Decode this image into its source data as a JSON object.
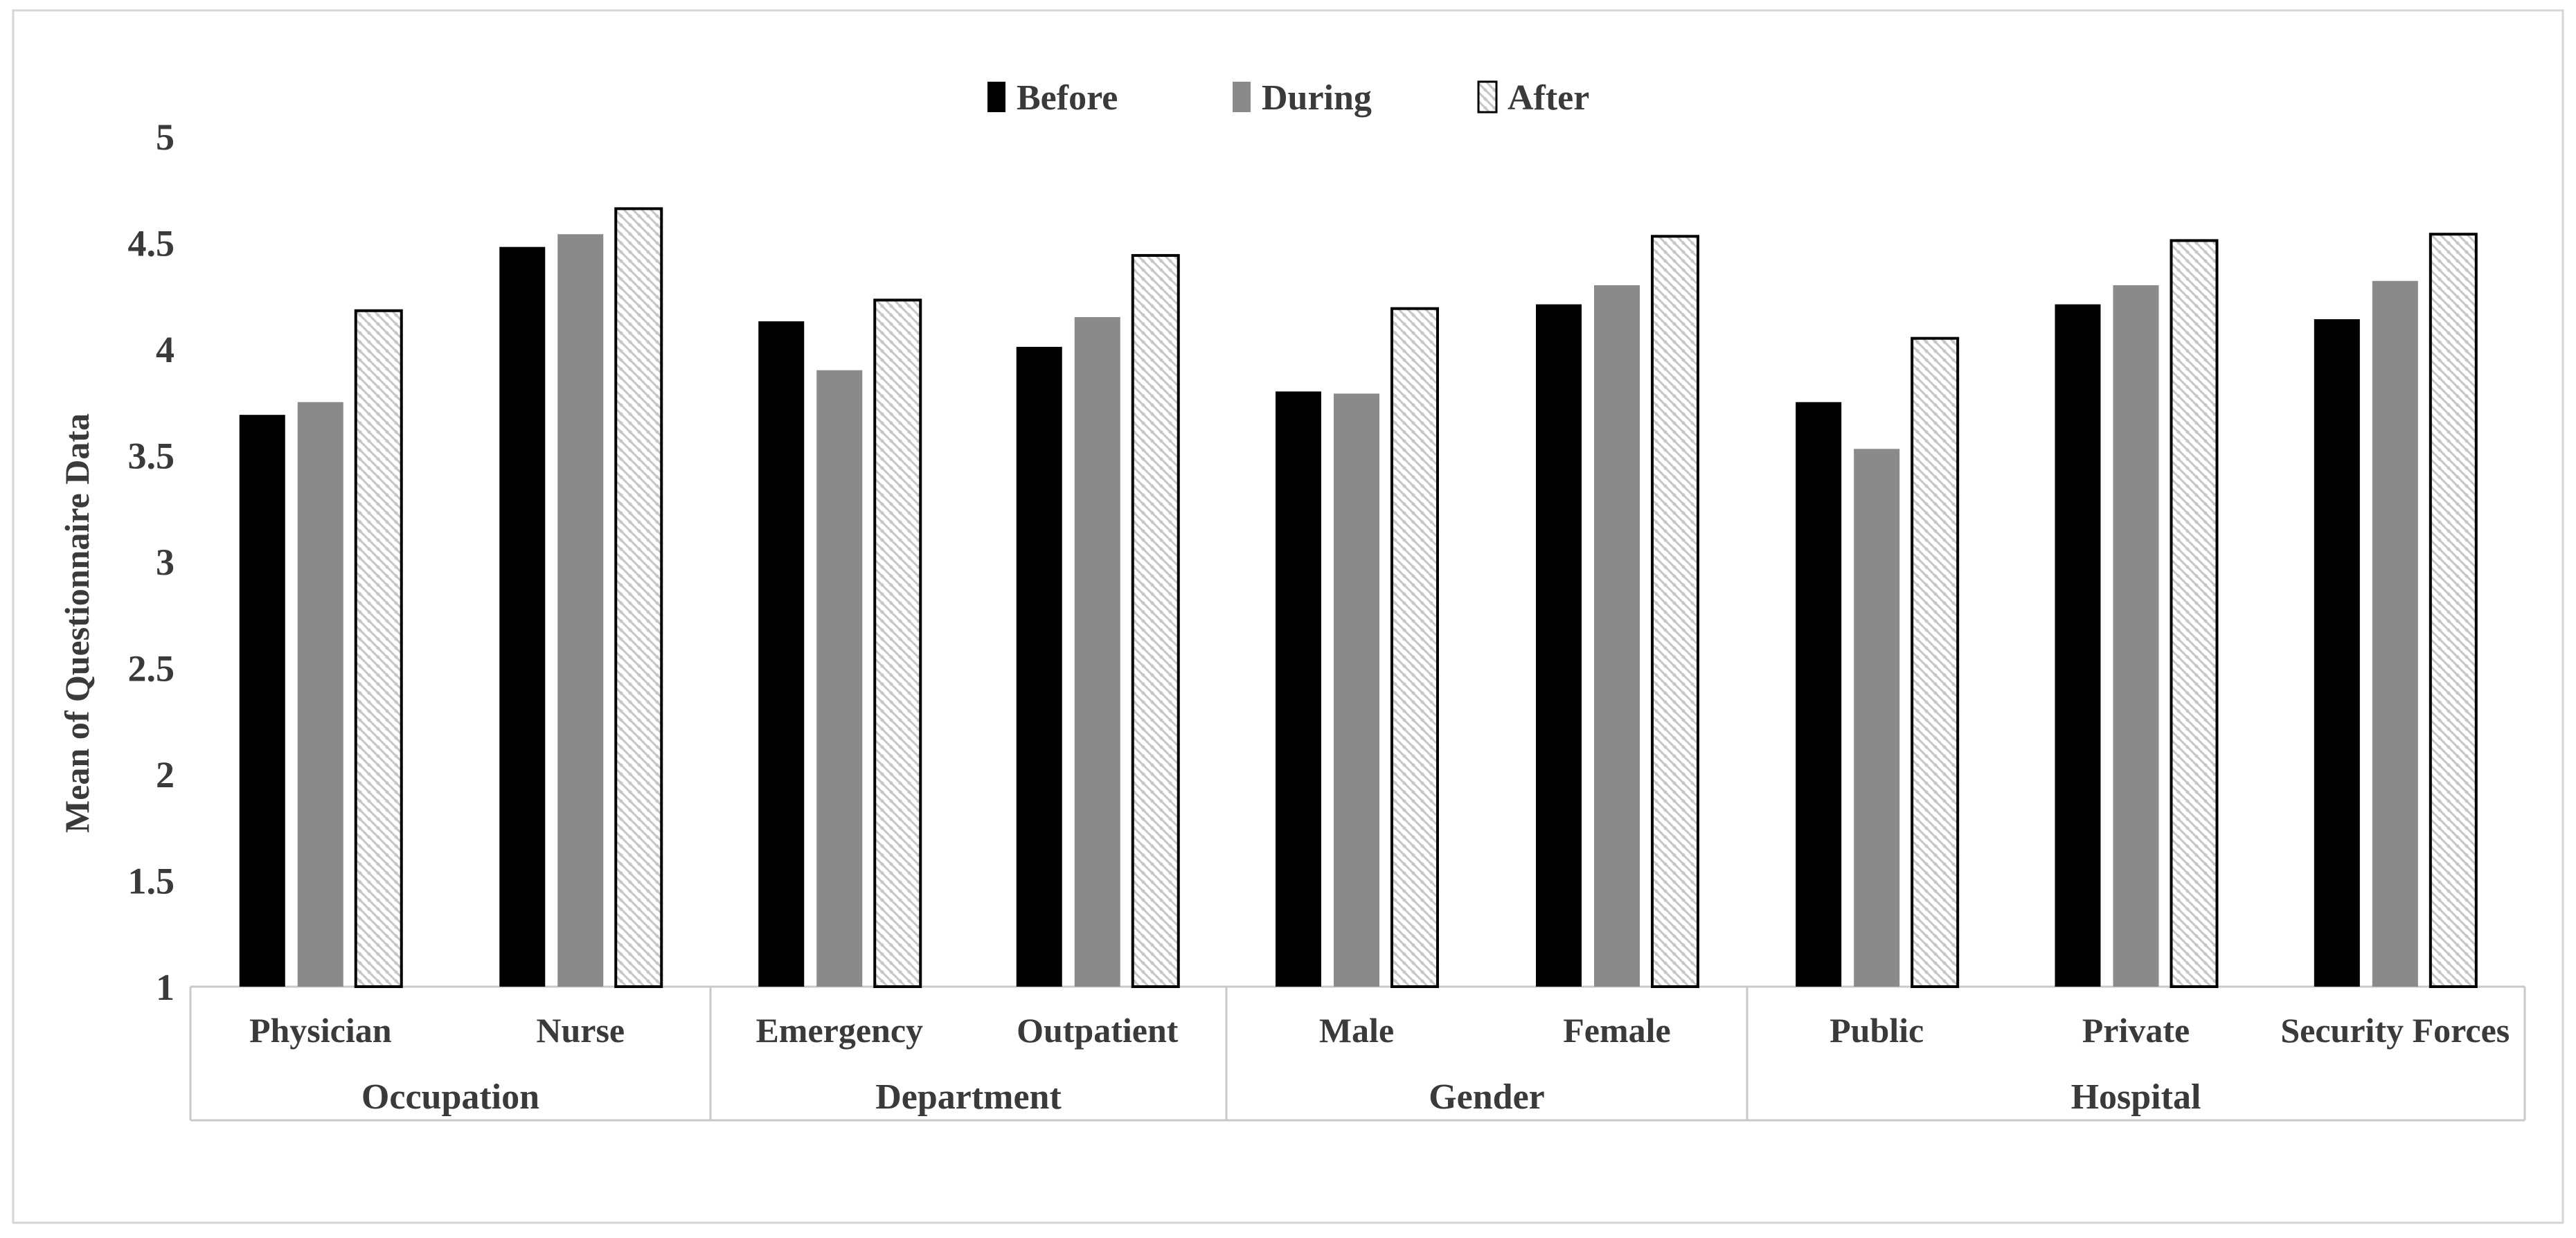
{
  "chart_data": {
    "type": "bar",
    "title": "",
    "ylabel": "Mean of Questionnaire Data",
    "ylim": [
      1,
      5
    ],
    "ytick_step": 0.5,
    "yticks": [
      {
        "value": 5,
        "label": "5"
      },
      {
        "value": 4.5,
        "label": "4.5"
      },
      {
        "value": 4,
        "label": "4"
      },
      {
        "value": 3.5,
        "label": "3.5"
      },
      {
        "value": 3,
        "label": "3"
      },
      {
        "value": 2.5,
        "label": "2.5"
      },
      {
        "value": 2,
        "label": "2"
      },
      {
        "value": 1.5,
        "label": "1.5"
      },
      {
        "value": 1,
        "label": "1"
      }
    ],
    "groups": [
      {
        "label": "Occupation",
        "categories": [
          "Physician",
          "Nurse"
        ]
      },
      {
        "label": "Department",
        "categories": [
          "Emergency",
          "Outpatient"
        ]
      },
      {
        "label": "Gender",
        "categories": [
          "Male",
          "Female"
        ]
      },
      {
        "label": "Hospital",
        "categories": [
          "Public",
          "Private",
          "Security Forces"
        ]
      }
    ],
    "series": [
      {
        "name": "Before",
        "style": "solid-black",
        "values": [
          3.69,
          4.48,
          4.13,
          4.01,
          3.8,
          4.21,
          3.75,
          4.21,
          4.14
        ]
      },
      {
        "name": "During",
        "style": "solid-gray",
        "values": [
          3.75,
          4.54,
          3.9,
          4.15,
          3.79,
          4.3,
          3.53,
          4.3,
          4.32
        ]
      },
      {
        "name": "After",
        "style": "hatched-white",
        "values": [
          4.18,
          4.66,
          4.23,
          4.44,
          4.19,
          4.53,
          4.05,
          4.51,
          4.54
        ]
      }
    ],
    "legend": {
      "position": "top-center",
      "items": [
        "Before",
        "During",
        "After"
      ]
    },
    "grid": false,
    "colors": {
      "before_fill": "#000000",
      "during_fill": "#8a8a8a",
      "after_fill": "#ffffff",
      "after_border": "#000000",
      "hatch_line": "#c6c6c6",
      "axis_line": "#c9c9c9",
      "panel_border": "#d6d6d6",
      "text": "#3a3a3a",
      "background": "#ffffff"
    }
  }
}
